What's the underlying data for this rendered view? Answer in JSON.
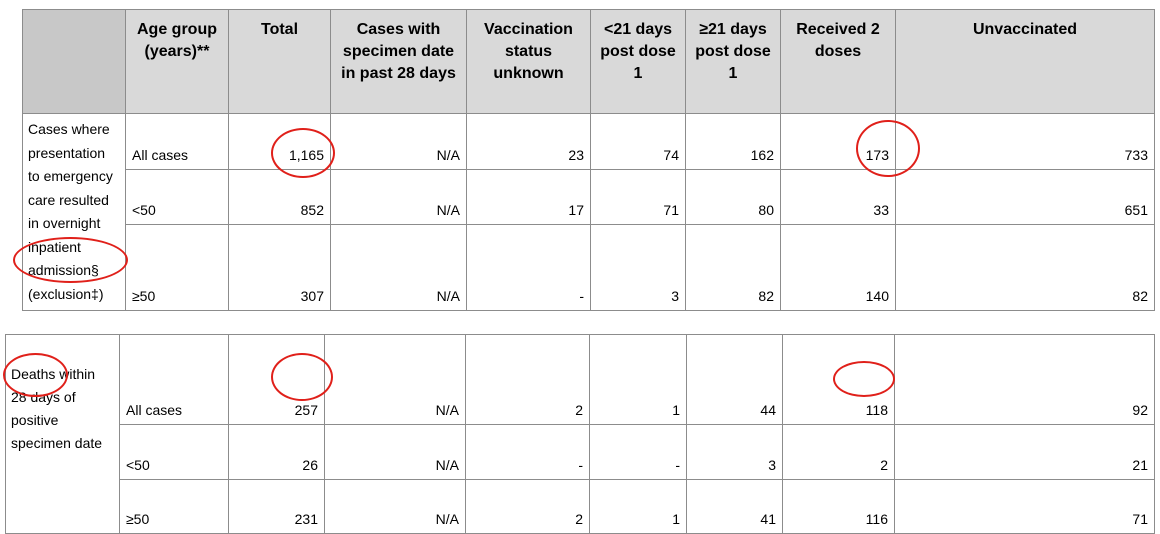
{
  "table1": {
    "headers": [
      "",
      "Age group (years)**",
      "Total",
      "Cases with specimen date in past 28 days",
      "Vaccination status unknown",
      "<21 days post dose 1",
      "≥21 days post dose 1",
      "Received 2 doses",
      "Unvaccinated"
    ],
    "row_label": "Cases where presentation to emergency care resulted in overnight inpatient admission§ (exclusion‡)",
    "rows": [
      {
        "age": "All cases",
        "total": "1,165",
        "past28": "N/A",
        "unknown": "23",
        "lt21": "74",
        "ge21": "162",
        "two_doses": "173",
        "unvacc": "733"
      },
      {
        "age": "<50",
        "total": "852",
        "past28": "N/A",
        "unknown": "17",
        "lt21": "71",
        "ge21": "80",
        "two_doses": "33",
        "unvacc": "651"
      },
      {
        "age": "≥50",
        "total": "307",
        "past28": "N/A",
        "unknown": "-",
        "lt21": "3",
        "ge21": "82",
        "two_doses": "140",
        "unvacc": "82"
      }
    ]
  },
  "table2": {
    "row_label": "Deaths within 28 days of positive specimen date",
    "rows": [
      {
        "age": "All cases",
        "total": "257",
        "past28": "N/A",
        "unknown": "2",
        "lt21": "1",
        "ge21": "44",
        "two_doses": "118",
        "unvacc": "92"
      },
      {
        "age": "<50",
        "total": "26",
        "past28": "N/A",
        "unknown": "-",
        "lt21": "-",
        "ge21": "3",
        "two_doses": "2",
        "unvacc": "21"
      },
      {
        "age": "≥50",
        "total": "231",
        "past28": "N/A",
        "unknown": "2",
        "lt21": "1",
        "ge21": "41",
        "two_doses": "116",
        "unvacc": "71"
      }
    ]
  },
  "annotation_color": "#e0201a"
}
